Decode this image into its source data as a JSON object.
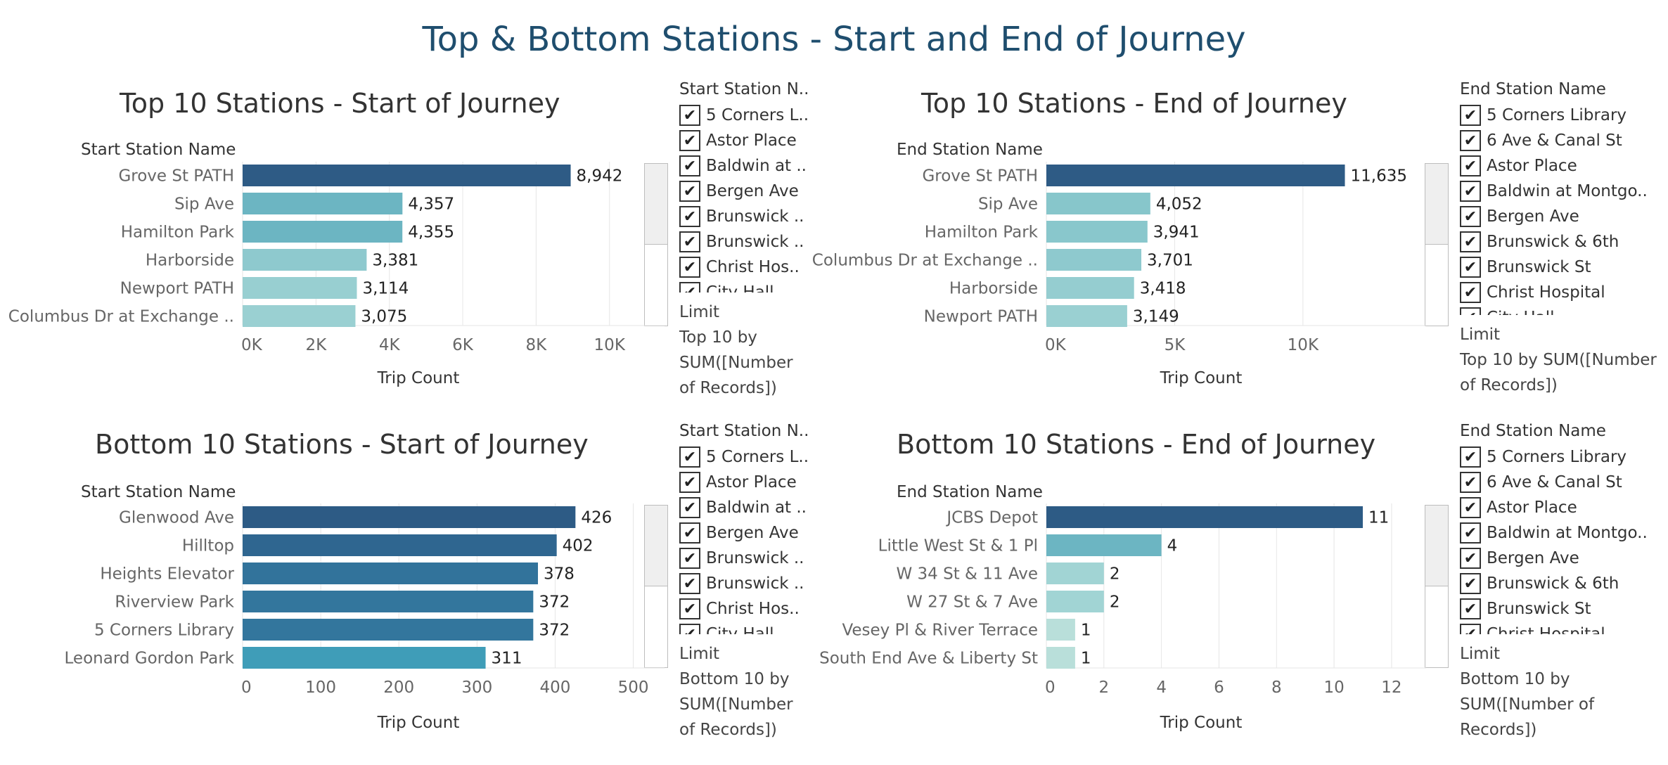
{
  "dashboard_title": "Top & Bottom Stations - Start and End of Journey",
  "colors": {
    "title": "#1f4e6e",
    "gridline": "#e6e6e6",
    "axis_text": "#666666"
  },
  "chart_data": [
    {
      "id": "top-start",
      "type": "bar",
      "title": "Top 10 Stations - Start of Journey",
      "ylabel": "Start Station Name",
      "xlabel": "Trip Count",
      "categories": [
        "Grove St PATH",
        "Sip Ave",
        "Hamilton Park",
        "Harborside",
        "Newport PATH",
        "Columbus Dr at Exchange .."
      ],
      "values": [
        8942,
        4357,
        4355,
        3381,
        3114,
        3075
      ],
      "value_labels": [
        "8,942",
        "4,357",
        "4,355",
        "3,381",
        "3,114",
        "3,075"
      ],
      "bar_colors": [
        "#2e5b85",
        "#6cb5c2",
        "#6cb5c2",
        "#8ec9ce",
        "#98cfd1",
        "#9ad0d2"
      ],
      "xlim": [
        0,
        11500
      ],
      "xticks": [
        0,
        2000,
        4000,
        6000,
        8000,
        10000
      ],
      "xtick_labels": [
        "0K",
        "2K",
        "4K",
        "6K",
        "8K",
        "10K"
      ],
      "legend": "none",
      "grid": true
    },
    {
      "id": "top-end",
      "type": "bar",
      "title": "Top 10 Stations - End of Journey",
      "ylabel": "End Station Name",
      "xlabel": "Trip Count",
      "categories": [
        "Grove St PATH",
        "Sip Ave",
        "Hamilton Park",
        "Columbus Dr at Exchange ..",
        "Harborside",
        "Newport PATH"
      ],
      "values": [
        11635,
        4052,
        3941,
        3701,
        3418,
        3149
      ],
      "value_labels": [
        "11,635",
        "4,052",
        "3,941",
        "3,701",
        "3,418",
        "3,149"
      ],
      "bar_colors": [
        "#2e5b85",
        "#87c6cb",
        "#89c7cc",
        "#8ec9ce",
        "#95cdd0",
        "#9ad0d2"
      ],
      "xlim": [
        0,
        14800
      ],
      "xticks": [
        0,
        5000,
        10000
      ],
      "xtick_labels": [
        "0K",
        "5K",
        "10K"
      ],
      "legend": "none",
      "grid": true
    },
    {
      "id": "bottom-start",
      "type": "bar",
      "title": "Bottom 10 Stations - Start of Journey",
      "ylabel": "Start Station Name",
      "xlabel": "Trip Count",
      "categories": [
        "Glenwood Ave",
        "Hilltop",
        "Heights Elevator",
        "Riverview Park",
        "5 Corners Library",
        "Leonard Gordon Park"
      ],
      "values": [
        426,
        402,
        378,
        372,
        372,
        311
      ],
      "value_labels": [
        "426",
        "402",
        "378",
        "372",
        "372",
        "311"
      ],
      "bar_colors": [
        "#2d5b85",
        "#2f6690",
        "#32739b",
        "#33769d",
        "#33769d",
        "#3f9db8"
      ],
      "xlim": [
        0,
        540
      ],
      "xticks": [
        0,
        100,
        200,
        300,
        400,
        500
      ],
      "xtick_labels": [
        "0",
        "100",
        "200",
        "300",
        "400",
        "500"
      ],
      "legend": "none",
      "grid": true
    },
    {
      "id": "bottom-end",
      "type": "bar",
      "title": "Bottom 10 Stations - End of Journey",
      "ylabel": "End Station Name",
      "xlabel": "Trip Count",
      "categories": [
        "JCBS Depot",
        "Little West St & 1 Pl",
        "W 34 St & 11 Ave",
        "W 27 St & 7 Ave",
        "Vesey Pl & River Terrace",
        "South End Ave & Liberty St"
      ],
      "values": [
        11,
        4,
        2,
        2,
        1,
        1
      ],
      "value_labels": [
        "11",
        "4",
        "2",
        "2",
        "1",
        "1"
      ],
      "bar_colors": [
        "#2d5b85",
        "#6cb5c2",
        "#a1d4d4",
        "#a1d4d4",
        "#b9dfda",
        "#b9dfda"
      ],
      "xlim": [
        0,
        13.2
      ],
      "xticks": [
        0,
        2,
        4,
        6,
        8,
        10,
        12
      ],
      "xtick_labels": [
        "0",
        "2",
        "4",
        "6",
        "8",
        "10",
        "12"
      ],
      "legend": "none",
      "grid": true
    }
  ],
  "filters": {
    "top_start": {
      "title": "Start Station N..",
      "items": [
        "5 Corners L..",
        "Astor Place",
        "Baldwin at ..",
        "Bergen Ave",
        "Brunswick ..",
        "Brunswick ..",
        "Christ Hos..",
        "City Hall"
      ],
      "limit_lines": [
        "Limit",
        "Top 10 by",
        "SUM([Number",
        "of Records])"
      ]
    },
    "top_end": {
      "title": "End Station Name",
      "items": [
        "5 Corners Library",
        "6 Ave & Canal St",
        "Astor Place",
        "Baldwin at Montgo..",
        "Bergen Ave",
        "Brunswick & 6th",
        "Brunswick St",
        "Christ Hospital",
        "City Hall"
      ],
      "limit_lines": [
        "Limit",
        "Top 10 by SUM([Number",
        "of Records])"
      ]
    },
    "bottom_start": {
      "title": "Start Station N..",
      "items": [
        "5 Corners L..",
        "Astor Place",
        "Baldwin at ..",
        "Bergen Ave",
        "Brunswick ..",
        "Brunswick ..",
        "Christ Hos..",
        "City Hall"
      ],
      "limit_lines": [
        "Limit",
        "Bottom 10 by",
        "SUM([Number",
        "of Records])"
      ]
    },
    "bottom_end": {
      "title": "End Station Name",
      "items": [
        "5 Corners Library",
        "6 Ave & Canal St",
        "Astor Place",
        "Baldwin at Montgo..",
        "Bergen Ave",
        "Brunswick & 6th",
        "Brunswick St",
        "Christ Hospital"
      ],
      "limit_lines": [
        "Limit",
        "Bottom 10 by",
        "SUM([Number of",
        "Records])"
      ]
    },
    "check_glyph": "✔"
  }
}
